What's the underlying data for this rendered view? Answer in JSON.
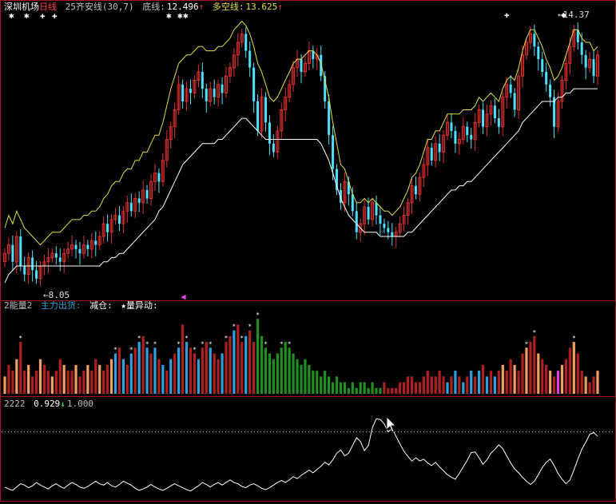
{
  "header_main": {
    "symbol": "深圳机场",
    "period": "日线",
    "indicator": "25齐安线(30,7)",
    "bottom_label": "底线:",
    "bottom_value": "12.496",
    "bull_label": "多空线:",
    "bull_value": "13.625",
    "arrow_up": "↑"
  },
  "header_energy": {
    "name": "2能量2",
    "main_out": "主力出货:",
    "reduce": "减仓:",
    "star": "★量异动:"
  },
  "header_osc": {
    "name": "2222",
    "value": "0.929",
    "arrow_down": "↓",
    "level": "1.000"
  },
  "annotations": {
    "high": "←14.37",
    "low": "←8.05"
  },
  "colors": {
    "up": "#e03030",
    "down": "#50e0ff",
    "panel_border": "#a01820",
    "upper_band": "#e0e040",
    "lower_band": "#ffffff",
    "vol_red": "#b02020",
    "vol_blue": "#30a0e0",
    "vol_green": "#209020",
    "vol_orange": "#f0a060",
    "vol_magenta": "#e040e0"
  },
  "chart_data": [
    {
      "type": "candlestick",
      "title": "深圳机场 日线",
      "ylim": [
        7.9,
        14.6
      ],
      "annotations": [
        {
          "text": "←14.37",
          "value": 14.37
        },
        {
          "text": "←8.05",
          "value": 8.05
        }
      ],
      "closes": [
        8.9,
        9.1,
        8.7,
        9.3,
        8.6,
        8.4,
        8.8,
        8.5,
        8.3,
        8.6,
        8.7,
        8.8,
        8.9,
        8.8,
        8.7,
        8.9,
        9.0,
        9.1,
        9.0,
        8.9,
        9.1,
        9.0,
        9.2,
        9.1,
        9.3,
        9.6,
        9.4,
        9.7,
        9.8,
        9.6,
        9.9,
        10.1,
        9.9,
        10.2,
        10.1,
        10.4,
        10.2,
        10.6,
        10.8,
        10.6,
        11.1,
        11.6,
        11.9,
        12.3,
        12.9,
        12.5,
        12.8,
        12.7,
        13.0,
        13.2,
        12.8,
        12.5,
        12.8,
        12.6,
        12.9,
        12.7,
        13.1,
        13.3,
        13.6,
        13.9,
        14.1,
        13.7,
        13.3,
        12.5,
        11.8,
        12.6,
        12.0,
        11.5,
        11.3,
        11.8,
        12.3,
        12.6,
        12.9,
        13.3,
        13.5,
        13.2,
        13.4,
        13.7,
        13.5,
        13.6,
        13.1,
        12.5,
        11.7,
        10.9,
        10.4,
        10.1,
        10.6,
        10.3,
        9.9,
        9.4,
        9.6,
        10.0,
        9.7,
        10.1,
        9.8,
        9.6,
        9.5,
        9.4,
        9.3,
        9.4,
        9.6,
        9.8,
        10.1,
        10.5,
        10.3,
        10.7,
        11.0,
        11.4,
        11.1,
        11.5,
        11.3,
        11.7,
        12.0,
        11.8,
        11.5,
        11.6,
        11.9,
        11.7,
        11.6,
        12.0,
        12.3,
        11.9,
        12.2,
        12.4,
        12.1,
        11.9,
        12.6,
        12.9,
        12.7,
        12.3,
        13.1,
        13.6,
        13.9,
        14.1,
        13.8,
        13.5,
        13.2,
        12.9,
        12.6,
        11.9,
        12.5,
        13.0,
        13.4,
        13.8,
        14.2,
        13.9,
        13.6,
        13.3,
        13.5,
        13.1,
        13.6
      ],
      "upper_band": [
        9.5,
        9.8,
        9.6,
        9.9,
        9.7,
        9.5,
        9.4,
        9.3,
        9.2,
        9.1,
        9.2,
        9.3,
        9.4,
        9.4,
        9.4,
        9.5,
        9.6,
        9.7,
        9.7,
        9.7,
        9.8,
        9.8,
        9.9,
        9.9,
        10.0,
        10.2,
        10.3,
        10.5,
        10.6,
        10.6,
        10.8,
        10.9,
        10.9,
        11.1,
        11.1,
        11.3,
        11.3,
        11.5,
        11.7,
        11.7,
        12.0,
        12.4,
        12.8,
        13.1,
        13.4,
        13.5,
        13.6,
        13.6,
        13.7,
        13.8,
        13.8,
        13.7,
        13.7,
        13.7,
        13.8,
        13.8,
        13.9,
        14.0,
        14.2,
        14.3,
        14.4,
        14.3,
        14.1,
        13.8,
        13.4,
        13.2,
        12.9,
        12.6,
        12.5,
        12.6,
        12.8,
        13.0,
        13.2,
        13.4,
        13.5,
        13.5,
        13.6,
        13.7,
        13.7,
        13.6,
        13.4,
        13.0,
        12.6,
        12.0,
        11.5,
        11.0,
        10.9,
        10.6,
        10.3,
        10.1,
        10.1,
        10.2,
        10.1,
        10.2,
        10.1,
        10.0,
        9.9,
        9.9,
        9.8,
        9.9,
        10.0,
        10.2,
        10.4,
        10.7,
        10.8,
        11.0,
        11.3,
        11.6,
        11.6,
        11.8,
        11.8,
        12.0,
        12.2,
        12.2,
        12.2,
        12.2,
        12.3,
        12.3,
        12.3,
        12.4,
        12.6,
        12.5,
        12.6,
        12.7,
        12.6,
        12.5,
        12.8,
        13.0,
        13.1,
        13.0,
        13.3,
        13.7,
        14.0,
        14.2,
        14.2,
        14.0,
        13.8,
        13.5,
        13.3,
        13.0,
        13.1,
        13.3,
        13.6,
        13.9,
        14.2,
        14.2,
        14.0,
        13.9,
        13.9,
        13.7,
        13.8
      ],
      "lower_band": [
        8.2,
        8.4,
        8.5,
        8.6,
        8.6,
        8.6,
        8.6,
        8.6,
        8.6,
        8.6,
        8.6,
        8.6,
        8.6,
        8.6,
        8.6,
        8.6,
        8.6,
        8.6,
        8.6,
        8.6,
        8.6,
        8.6,
        8.6,
        8.6,
        8.6,
        8.7,
        8.7,
        8.8,
        8.8,
        8.9,
        8.9,
        9.0,
        9.1,
        9.2,
        9.3,
        9.4,
        9.5,
        9.6,
        9.7,
        9.9,
        10.0,
        10.2,
        10.4,
        10.6,
        10.8,
        11.0,
        11.1,
        11.2,
        11.3,
        11.4,
        11.5,
        11.5,
        11.5,
        11.5,
        11.6,
        11.6,
        11.7,
        11.8,
        11.9,
        12.0,
        12.1,
        12.1,
        12.0,
        11.9,
        11.8,
        11.7,
        11.6,
        11.6,
        11.6,
        11.6,
        11.6,
        11.6,
        11.6,
        11.6,
        11.6,
        11.6,
        11.6,
        11.6,
        11.6,
        11.6,
        11.5,
        11.3,
        11.1,
        10.8,
        10.5,
        10.2,
        10.0,
        9.8,
        9.7,
        9.6,
        9.5,
        9.4,
        9.4,
        9.4,
        9.4,
        9.3,
        9.3,
        9.3,
        9.3,
        9.3,
        9.3,
        9.3,
        9.4,
        9.4,
        9.5,
        9.6,
        9.7,
        9.8,
        9.9,
        10.0,
        10.1,
        10.2,
        10.3,
        10.4,
        10.4,
        10.5,
        10.5,
        10.6,
        10.6,
        10.7,
        10.8,
        10.9,
        11.0,
        11.1,
        11.2,
        11.3,
        11.4,
        11.5,
        11.6,
        11.7,
        11.8,
        12.0,
        12.1,
        12.2,
        12.3,
        12.4,
        12.5,
        12.5,
        12.5,
        12.5,
        12.6,
        12.6,
        12.7,
        12.7,
        12.8,
        12.8,
        12.8,
        12.8,
        12.8,
        12.8,
        12.8
      ]
    },
    {
      "type": "bar",
      "title": "2能量2",
      "legend": [
        "主力出货",
        "减仓",
        "★量异动"
      ],
      "values": [
        3,
        5,
        4,
        6,
        9,
        4,
        5,
        3,
        4,
        6,
        5,
        4,
        3,
        4,
        6,
        5,
        4,
        4,
        5,
        3,
        4,
        5,
        4,
        6,
        5,
        4,
        5,
        6,
        7,
        8,
        6,
        5,
        7,
        8,
        9,
        10,
        8,
        7,
        8,
        6,
        5,
        4,
        6,
        7,
        8,
        12,
        9,
        8,
        7,
        6,
        8,
        9,
        8,
        7,
        6,
        7,
        9,
        10,
        11,
        12,
        9,
        10,
        11,
        9,
        13,
        10,
        8,
        7,
        6,
        7,
        8,
        9,
        8,
        7,
        6,
        5,
        6,
        5,
        4,
        4,
        3,
        4,
        3,
        2,
        3,
        2,
        2,
        1,
        2,
        1,
        2,
        2,
        1,
        2,
        1,
        1,
        2,
        1,
        1,
        1,
        2,
        2,
        3,
        3,
        2,
        2,
        3,
        4,
        3,
        3,
        4,
        3,
        2,
        3,
        4,
        3,
        2,
        3,
        4,
        3,
        4,
        5,
        3,
        4,
        3,
        4,
        5,
        4,
        6,
        5,
        4,
        7,
        8,
        9,
        10,
        7,
        6,
        5,
        4,
        3,
        4,
        5,
        6,
        8,
        9,
        7,
        4,
        3,
        2,
        3,
        4
      ],
      "ylim": [
        0,
        14
      ]
    },
    {
      "type": "line",
      "title": "2222",
      "reference_line": 1.0,
      "last_value": 0.929,
      "values": [
        0.15,
        0.12,
        0.1,
        0.15,
        0.2,
        0.18,
        0.14,
        0.17,
        0.22,
        0.18,
        0.15,
        0.12,
        0.17,
        0.2,
        0.16,
        0.13,
        0.18,
        0.22,
        0.19,
        0.15,
        0.13,
        0.16,
        0.2,
        0.24,
        0.2,
        0.18,
        0.22,
        0.17,
        0.15,
        0.19,
        0.24,
        0.21,
        0.18,
        0.13,
        0.1,
        0.12,
        0.15,
        0.19,
        0.15,
        0.12,
        0.1,
        0.13,
        0.17,
        0.2,
        0.17,
        0.14,
        0.11,
        0.09,
        0.13,
        0.17,
        0.22,
        0.19,
        0.15,
        0.19,
        0.22,
        0.18,
        0.22,
        0.26,
        0.22,
        0.2,
        0.16,
        0.14,
        0.18,
        0.2,
        0.17,
        0.13,
        0.11,
        0.14,
        0.18,
        0.22,
        0.25,
        0.22,
        0.26,
        0.31,
        0.28,
        0.33,
        0.37,
        0.41,
        0.37,
        0.42,
        0.47,
        0.53,
        0.49,
        0.57,
        0.67,
        0.72,
        0.63,
        0.67,
        0.79,
        0.91,
        0.85,
        0.71,
        0.79,
        1.06,
        1.2,
        1.19,
        1.12,
        1.0,
        1.05,
        0.93,
        0.81,
        0.7,
        0.62,
        0.55,
        0.6,
        0.55,
        0.58,
        0.52,
        0.48,
        0.53,
        0.46,
        0.4,
        0.34,
        0.3,
        0.27,
        0.36,
        0.46,
        0.56,
        0.68,
        0.69,
        0.6,
        0.5,
        0.57,
        0.67,
        0.73,
        0.8,
        0.74,
        0.63,
        0.52,
        0.43,
        0.37,
        0.3,
        0.24,
        0.19,
        0.24,
        0.34,
        0.45,
        0.53,
        0.58,
        0.48,
        0.36,
        0.27,
        0.2,
        0.26,
        0.41,
        0.58,
        0.73,
        0.84,
        0.96,
        0.99,
        0.93
      ],
      "ylim": [
        0.0,
        1.4
      ]
    }
  ]
}
